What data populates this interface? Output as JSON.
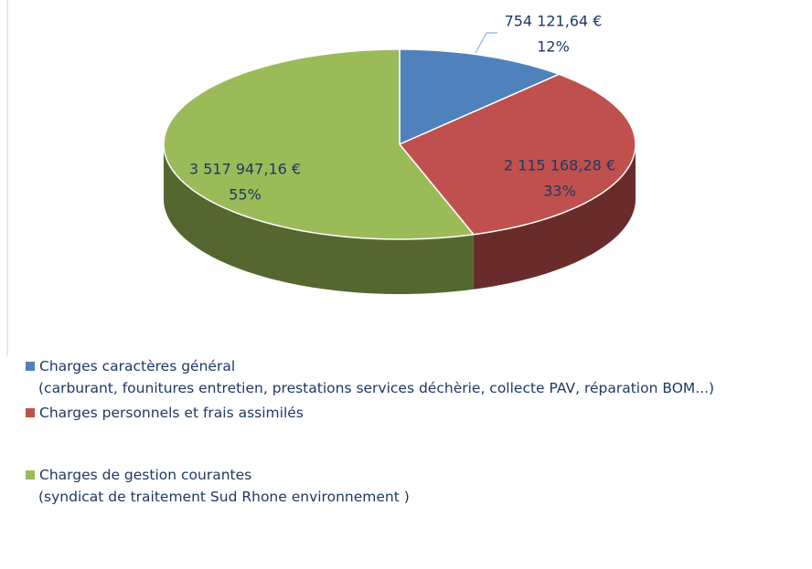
{
  "chart_data": {
    "type": "pie",
    "categories": [
      "Charges caractères général",
      "Charges personnels et frais assimilés",
      "Charges de gestion courantes"
    ],
    "legend_notes": [
      "(carburant, founitures entretien, prestations services déchèrie, collecte PAV, réparation BOM...)",
      null,
      "(syndicat de traitement Sud Rhone environnement )"
    ],
    "values": [
      754121.64,
      2115168.28,
      3517947.16
    ],
    "value_labels": [
      "754 121,64 €",
      "2 115 168,28 €",
      "3 517 947,16 €"
    ],
    "percents": [
      12,
      33,
      55
    ],
    "percent_labels": [
      "12%",
      "33%",
      "55%"
    ],
    "colors": [
      "#4f81bd",
      "#c0504d",
      "#9bbb59"
    ],
    "style": "3d",
    "legend": "bottom-left"
  }
}
